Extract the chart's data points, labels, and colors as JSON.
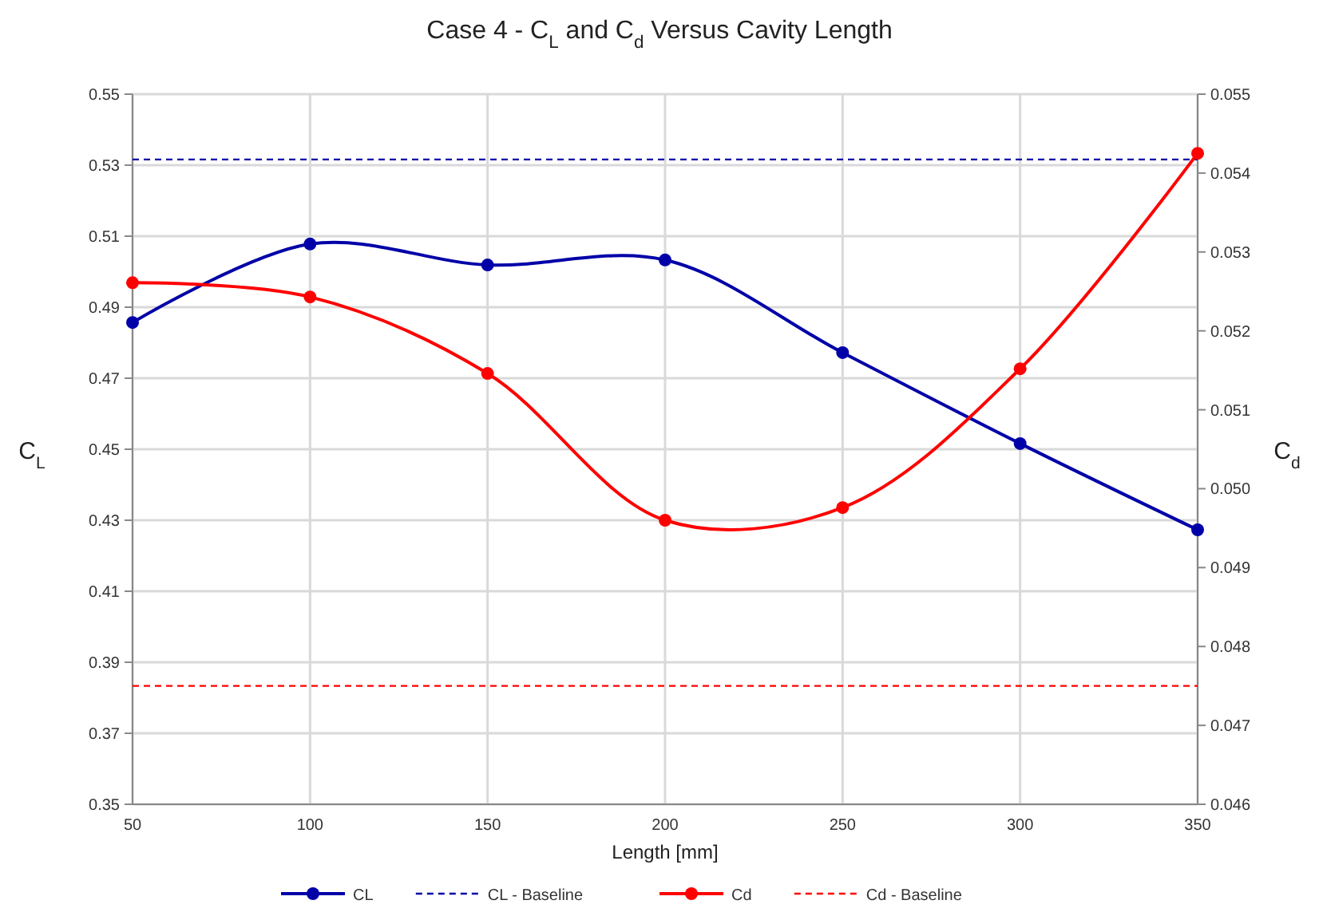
{
  "chart_data": {
    "type": "line",
    "title": "Case 4 - C$_{L}$ and C$_{d}$ Versus Cavity Length",
    "xlabel": "Length [mm]",
    "ylabel": "C$_{L}$",
    "y2label": "C$_{d}$",
    "x": [
      50,
      100,
      150,
      200,
      250,
      300,
      350
    ],
    "series": [
      {
        "name": "CL",
        "color": "#0000a8",
        "values": [
          0.4857,
          0.5078,
          0.5019,
          0.5033,
          0.4772,
          0.4516,
          0.4273
        ]
      },
      {
        "name": "Cd",
        "color": "#ff0000",
        "axis": "y2",
        "values": [
          0.05261,
          0.05243,
          0.05146,
          0.0496,
          0.04976,
          0.05152,
          0.05425
        ]
      }
    ],
    "ref_lines": [
      {
        "axis": "y",
        "value": 0.5316,
        "label": "CL - Baseline",
        "color": "#0000a8",
        "line_style": "dashed"
      },
      {
        "axis": "y2",
        "value": 0.0475,
        "label": "Cd - Baseline",
        "color": "#ff0000",
        "line_style": "dashed"
      }
    ],
    "xlim": [
      50,
      350
    ],
    "xticks": [
      50,
      100,
      150,
      200,
      250,
      300,
      350
    ],
    "ylim": [
      0.35,
      0.55
    ],
    "yticks": [
      {
        "value": 0.35,
        "label": "0.35"
      },
      {
        "value": 0.37,
        "label": "0.37"
      },
      {
        "value": 0.39,
        "label": "0.39"
      },
      {
        "value": 0.41,
        "label": "0.41"
      },
      {
        "value": 0.43,
        "label": "0.43"
      },
      {
        "value": 0.45,
        "label": "0.45"
      },
      {
        "value": 0.47,
        "label": "0.47"
      },
      {
        "value": 0.49,
        "label": "0.49"
      },
      {
        "value": 0.51,
        "label": "0.51"
      },
      {
        "value": 0.53,
        "label": "0.53"
      },
      {
        "value": 0.55,
        "label": "0.55"
      }
    ],
    "y2lim": [
      0.046,
      0.055
    ],
    "y2ticks": [
      {
        "value": 0.046,
        "label": "0.046"
      },
      {
        "value": 0.047,
        "label": "0.047"
      },
      {
        "value": 0.048,
        "label": "0.048"
      },
      {
        "value": 0.049,
        "label": "0.049"
      },
      {
        "value": 0.05,
        "label": "0.050"
      },
      {
        "value": 0.051,
        "label": "0.051"
      },
      {
        "value": 0.052,
        "label": "0.052"
      },
      {
        "value": 0.053,
        "label": "0.053"
      },
      {
        "value": 0.054,
        "label": "0.054"
      },
      {
        "value": 0.055,
        "label": "0.055"
      }
    ],
    "grid": true,
    "legend": "bottom",
    "marker": "circle",
    "line_style": "solid"
  }
}
